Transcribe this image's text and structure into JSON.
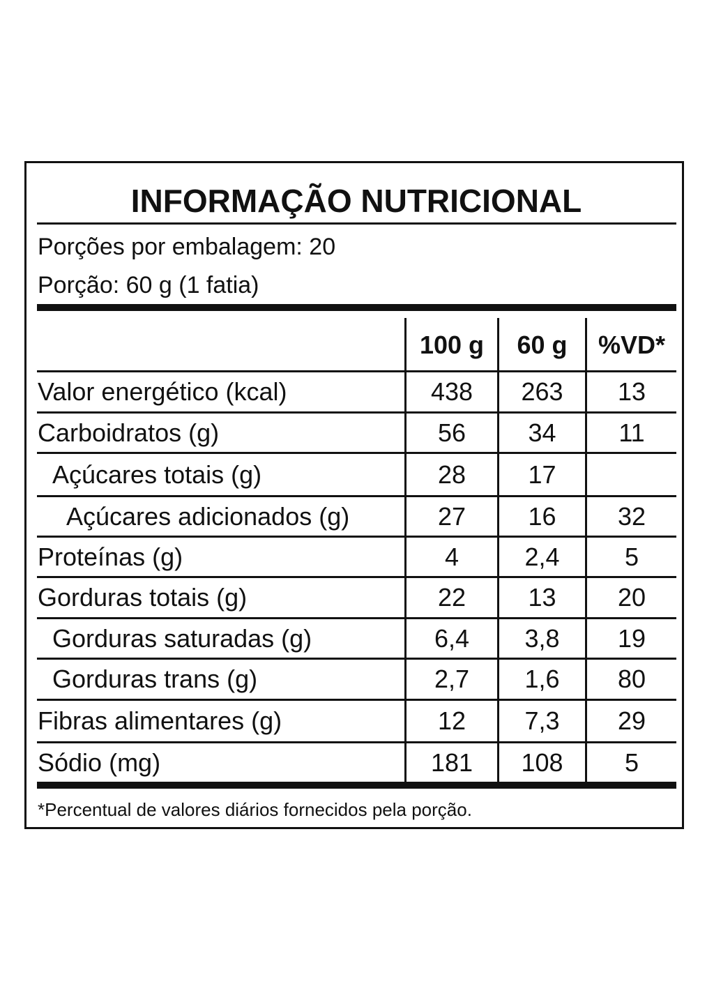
{
  "title": "INFORMAÇÃO NUTRICIONAL",
  "servings_per_package": "Porções por embalagem: 20",
  "serving_size": "Porção: 60 g (1 fatia)",
  "columns": [
    "100 g",
    "60 g",
    "%VD*"
  ],
  "rows": [
    {
      "name": "Valor energético (kcal)",
      "indent": 0,
      "v100": "438",
      "v60": "263",
      "vd": "13"
    },
    {
      "name": "Carboidratos (g)",
      "indent": 0,
      "v100": "56",
      "v60": "34",
      "vd": "11"
    },
    {
      "name": "Açúcares totais (g)",
      "indent": 1,
      "v100": "28",
      "v60": "17",
      "vd": ""
    },
    {
      "name": "Açúcares adicionados (g)",
      "indent": 2,
      "v100": "27",
      "v60": "16",
      "vd": "32"
    },
    {
      "name": "Proteínas (g)",
      "indent": 0,
      "v100": "4",
      "v60": "2,4",
      "vd": "5"
    },
    {
      "name": "Gorduras totais (g)",
      "indent": 0,
      "v100": "22",
      "v60": "13",
      "vd": "20"
    },
    {
      "name": "Gorduras saturadas (g)",
      "indent": 1,
      "v100": "6,4",
      "v60": "3,8",
      "vd": "19"
    },
    {
      "name": "Gorduras trans (g)",
      "indent": 1,
      "v100": "2,7",
      "v60": "1,6",
      "vd": "80"
    },
    {
      "name": "Fibras alimentares (g)",
      "indent": 0,
      "v100": "12",
      "v60": "7,3",
      "vd": "29"
    },
    {
      "name": "Sódio (mg)",
      "indent": 0,
      "v100": "181",
      "v60": "108",
      "vd": "5"
    }
  ],
  "footnote": "*Percentual de valores diários fornecidos pela porção."
}
